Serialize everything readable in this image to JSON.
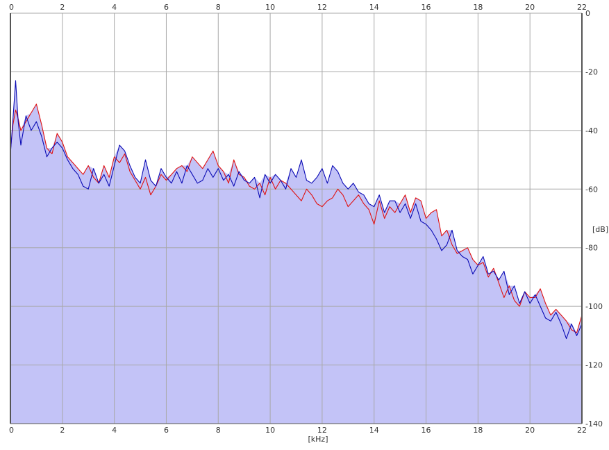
{
  "chart_data": {
    "type": "area",
    "xlabel": "[kHz]",
    "ylabel": "[dB]",
    "xlim": [
      0,
      22
    ],
    "ylim": [
      -140,
      0
    ],
    "x_ticks": [
      "0",
      "2",
      "4",
      "6",
      "8",
      "10",
      "12",
      "14",
      "16",
      "18",
      "20",
      "22"
    ],
    "y_ticks": [
      "0",
      "-20",
      "-40",
      "-60",
      "-80",
      "-100",
      "-120",
      "-140"
    ],
    "grid": true,
    "colors": {
      "fill": "#c3c3f7",
      "grid": "#a8a8a8",
      "axis": "#555555",
      "series_1": "#e01010",
      "series_2": "#0a0ab4"
    },
    "series": [
      {
        "x": [
          0.0,
          0.1,
          0.2,
          0.3,
          0.4,
          0.6,
          0.8,
          1.0,
          1.2,
          1.4,
          1.6,
          1.8,
          2.0,
          2.2,
          2.4,
          2.6,
          2.8,
          3.0,
          3.2,
          3.4,
          3.6,
          3.8,
          4.0,
          4.2,
          4.4,
          4.6,
          4.8,
          5.0,
          5.2,
          5.4,
          5.6,
          5.8,
          6.0,
          6.2,
          6.4,
          6.6,
          6.8,
          7.0,
          7.2,
          7.4,
          7.6,
          7.8,
          8.0,
          8.2,
          8.4,
          8.6,
          8.8,
          9.0,
          9.2,
          9.4,
          9.6,
          9.8,
          10.0,
          10.2,
          10.4,
          10.6,
          10.8,
          11.0,
          11.2,
          11.4,
          11.6,
          11.8,
          12.0,
          12.2,
          12.4,
          12.6,
          12.8,
          13.0,
          13.2,
          13.4,
          13.6,
          13.8,
          14.0,
          14.2,
          14.4,
          14.6,
          14.8,
          15.0,
          15.2,
          15.4,
          15.6,
          15.8,
          16.0,
          16.2,
          16.4,
          16.6,
          16.8,
          17.0,
          17.2,
          17.4,
          17.6,
          17.8,
          18.0,
          18.2,
          18.4,
          18.6,
          18.8,
          19.0,
          19.2,
          19.4,
          19.6,
          19.8,
          20.0,
          20.2,
          20.4,
          20.6,
          20.8,
          21.0,
          21.2,
          21.4,
          21.6,
          21.8,
          22.0
        ],
        "values": [
          -47,
          -38,
          -33,
          -36,
          -40,
          -37,
          -34,
          -31,
          -38,
          -46,
          -48,
          -41,
          -44,
          -49,
          -51,
          -53,
          -55,
          -52,
          -56,
          -58,
          -52,
          -56,
          -49,
          -51,
          -48,
          -54,
          -57,
          -60,
          -56,
          -62,
          -59,
          -55,
          -57,
          -55,
          -53,
          -52,
          -54,
          -49,
          -51,
          -53,
          -50,
          -47,
          -52,
          -54,
          -58,
          -50,
          -55,
          -56,
          -59,
          -60,
          -58,
          -62,
          -56,
          -60,
          -57,
          -58,
          -60,
          -62,
          -64,
          -60,
          -62,
          -65,
          -66,
          -64,
          -63,
          -60,
          -62,
          -66,
          -64,
          -62,
          -65,
          -67,
          -72,
          -64,
          -70,
          -66,
          -68,
          -65,
          -62,
          -68,
          -63,
          -64,
          -70,
          -68,
          -67,
          -76,
          -74,
          -79,
          -82,
          -81,
          -80,
          -84,
          -86,
          -85,
          -90,
          -87,
          -92,
          -97,
          -93,
          -98,
          -100,
          -95,
          -97,
          -97,
          -94,
          -99,
          -103,
          -101,
          -103,
          -105,
          -108,
          -109,
          -103
        ]
      },
      {
        "x": [
          0.0,
          0.1,
          0.2,
          0.3,
          0.4,
          0.6,
          0.8,
          1.0,
          1.2,
          1.4,
          1.6,
          1.8,
          2.0,
          2.2,
          2.4,
          2.6,
          2.8,
          3.0,
          3.2,
          3.4,
          3.6,
          3.8,
          4.0,
          4.2,
          4.4,
          4.6,
          4.8,
          5.0,
          5.2,
          5.4,
          5.6,
          5.8,
          6.0,
          6.2,
          6.4,
          6.6,
          6.8,
          7.0,
          7.2,
          7.4,
          7.6,
          7.8,
          8.0,
          8.2,
          8.4,
          8.6,
          8.8,
          9.0,
          9.2,
          9.4,
          9.6,
          9.8,
          10.0,
          10.2,
          10.4,
          10.6,
          10.8,
          11.0,
          11.2,
          11.4,
          11.6,
          11.8,
          12.0,
          12.2,
          12.4,
          12.6,
          12.8,
          13.0,
          13.2,
          13.4,
          13.6,
          13.8,
          14.0,
          14.2,
          14.4,
          14.6,
          14.8,
          15.0,
          15.2,
          15.4,
          15.6,
          15.8,
          16.0,
          16.2,
          16.4,
          16.6,
          16.8,
          17.0,
          17.2,
          17.4,
          17.6,
          17.8,
          18.0,
          18.2,
          18.4,
          18.6,
          18.8,
          19.0,
          19.2,
          19.4,
          19.6,
          19.8,
          20.0,
          20.2,
          20.4,
          20.6,
          20.8,
          21.0,
          21.2,
          21.4,
          21.6,
          21.8,
          22.0
        ],
        "values": [
          -48,
          -36,
          -23,
          -37,
          -45,
          -35,
          -40,
          -37,
          -42,
          -49,
          -46,
          -44,
          -46,
          -50,
          -53,
          -55,
          -59,
          -60,
          -53,
          -58,
          -55,
          -59,
          -52,
          -45,
          -47,
          -52,
          -56,
          -58,
          -50,
          -57,
          -59,
          -53,
          -56,
          -58,
          -54,
          -58,
          -52,
          -55,
          -58,
          -57,
          -53,
          -56,
          -53,
          -57,
          -55,
          -59,
          -54,
          -57,
          -58,
          -56,
          -63,
          -55,
          -58,
          -55,
          -57,
          -60,
          -53,
          -56,
          -50,
          -57,
          -58,
          -56,
          -53,
          -58,
          -52,
          -54,
          -58,
          -60,
          -58,
          -61,
          -62,
          -65,
          -66,
          -62,
          -68,
          -64,
          -64,
          -68,
          -65,
          -70,
          -65,
          -71,
          -72,
          -74,
          -77,
          -81,
          -79,
          -74,
          -81,
          -83,
          -84,
          -89,
          -86,
          -83,
          -89,
          -88,
          -91,
          -88,
          -96,
          -93,
          -99,
          -95,
          -99,
          -96,
          -100,
          -104,
          -105,
          -102,
          -106,
          -111,
          -106,
          -110,
          -106
        ]
      }
    ]
  }
}
